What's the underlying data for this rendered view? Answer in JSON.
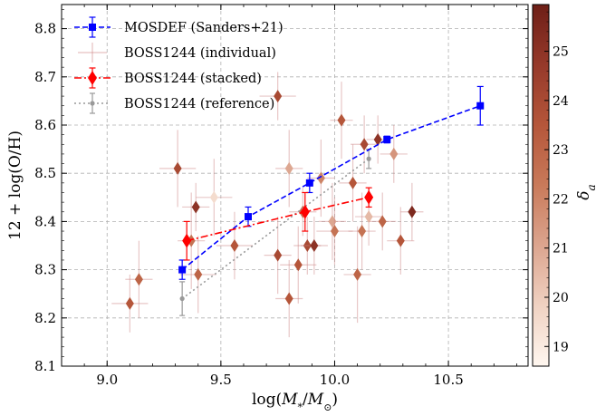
{
  "chart_data": {
    "type": "scatter",
    "xlabel": "log(M*/M⊙)",
    "ylabel": "12 + log(O/H)",
    "xlim": [
      8.8,
      10.85
    ],
    "ylim": [
      8.1,
      8.85
    ],
    "xticks": [
      "9.0",
      "9.5",
      "10.0",
      "10.5"
    ],
    "xtick_values": [
      9.0,
      9.5,
      10.0,
      10.5
    ],
    "yticks": [
      "8.1",
      "8.2",
      "8.3",
      "8.4",
      "8.5",
      "8.6",
      "8.7",
      "8.8"
    ],
    "ytick_values": [
      8.1,
      8.2,
      8.3,
      8.4,
      8.5,
      8.6,
      8.7,
      8.8
    ],
    "grid": true,
    "legend_placement": "top-left",
    "colorbar": {
      "label": "δa",
      "range": [
        18.6,
        25.95
      ],
      "ticks": [
        "19",
        "20",
        "21",
        "22",
        "23",
        "24",
        "25"
      ],
      "tick_values": [
        19,
        20,
        21,
        22,
        23,
        24,
        25
      ],
      "colormap_stops": [
        "#fff7f0",
        "#f0d2c2",
        "#dca58f",
        "#c97a5a",
        "#b5563a",
        "#96392a",
        "#6e1f17"
      ]
    },
    "series": [
      {
        "name": "MOSDEF (Sanders+21)",
        "style": "blue-dashed-square",
        "color": "#0000ff",
        "points": [
          {
            "x": 9.33,
            "y": 8.3,
            "yerr": 0.02
          },
          {
            "x": 9.62,
            "y": 8.41,
            "yerr": 0.02
          },
          {
            "x": 9.89,
            "y": 8.48,
            "yerr": 0.02
          },
          {
            "x": 10.23,
            "y": 8.57,
            "yerr": 0.007
          },
          {
            "x": 10.64,
            "y": 8.64,
            "yerr": 0.04
          }
        ]
      },
      {
        "name": "BOSS1244 (individual)",
        "style": "colored-diamonds",
        "points": [
          {
            "x": 9.1,
            "y": 8.23,
            "xerr": 0.08,
            "yerr": 0.06,
            "c": 23.5
          },
          {
            "x": 9.14,
            "y": 8.28,
            "xerr": 0.06,
            "yerr": 0.08,
            "c": 23.0
          },
          {
            "x": 9.31,
            "y": 8.51,
            "xerr": 0.08,
            "yerr": 0.08,
            "c": 24.0
          },
          {
            "x": 9.37,
            "y": 8.36,
            "xerr": 0.06,
            "yerr": 0.1,
            "c": 22.5
          },
          {
            "x": 9.39,
            "y": 8.43,
            "xerr": 0.06,
            "yerr": 0.05,
            "c": 25.0
          },
          {
            "x": 9.4,
            "y": 8.29,
            "xerr": 0.08,
            "yerr": 0.08,
            "c": 23.0
          },
          {
            "x": 9.47,
            "y": 8.45,
            "xerr": 0.08,
            "yerr": 0.08,
            "c": 19.5
          },
          {
            "x": 9.56,
            "y": 8.35,
            "xerr": 0.08,
            "yerr": 0.07,
            "c": 23.5
          },
          {
            "x": 9.75,
            "y": 8.66,
            "xerr": 0.08,
            "yerr": 0.05,
            "c": 24.0
          },
          {
            "x": 9.75,
            "y": 8.33,
            "xerr": 0.06,
            "yerr": 0.08,
            "c": 24.0
          },
          {
            "x": 9.8,
            "y": 8.24,
            "xerr": 0.06,
            "yerr": 0.08,
            "c": 23.5
          },
          {
            "x": 9.8,
            "y": 8.51,
            "xerr": 0.06,
            "yerr": 0.08,
            "c": 21.0
          },
          {
            "x": 9.84,
            "y": 8.31,
            "xerr": 0.08,
            "yerr": 0.08,
            "c": 23.5
          },
          {
            "x": 9.86,
            "y": 8.42,
            "xerr": 0.06,
            "yerr": 0.05,
            "c": 22.5
          },
          {
            "x": 9.88,
            "y": 8.35,
            "xerr": 0.06,
            "yerr": 0.06,
            "c": 24.0
          },
          {
            "x": 9.91,
            "y": 8.35,
            "xerr": 0.06,
            "yerr": 0.06,
            "c": 25.0
          },
          {
            "x": 9.94,
            "y": 8.49,
            "xerr": 0.06,
            "yerr": 0.08,
            "c": 22.0
          },
          {
            "x": 9.99,
            "y": 8.4,
            "xerr": 0.06,
            "yerr": 0.08,
            "c": 21.0
          },
          {
            "x": 10.0,
            "y": 8.38,
            "xerr": 0.08,
            "yerr": 0.07,
            "c": 22.5
          },
          {
            "x": 10.03,
            "y": 8.61,
            "xerr": 0.05,
            "yerr": 0.08,
            "c": 23.5
          },
          {
            "x": 10.08,
            "y": 8.48,
            "xerr": 0.06,
            "yerr": 0.08,
            "c": 23.5
          },
          {
            "x": 10.1,
            "y": 8.29,
            "xerr": 0.06,
            "yerr": 0.1,
            "c": 23.0
          },
          {
            "x": 10.12,
            "y": 8.38,
            "xerr": 0.06,
            "yerr": 0.08,
            "c": 22.5
          },
          {
            "x": 10.13,
            "y": 8.56,
            "xerr": 0.06,
            "yerr": 0.06,
            "c": 24.0
          },
          {
            "x": 10.15,
            "y": 8.41,
            "xerr": 0.06,
            "yerr": 0.06,
            "c": 20.5
          },
          {
            "x": 10.19,
            "y": 8.57,
            "xerr": 0.05,
            "yerr": 0.05,
            "c": 25.0
          },
          {
            "x": 10.21,
            "y": 8.4,
            "xerr": 0.06,
            "yerr": 0.06,
            "c": 23.0
          },
          {
            "x": 10.26,
            "y": 8.54,
            "xerr": 0.06,
            "yerr": 0.06,
            "c": 21.5
          },
          {
            "x": 10.29,
            "y": 8.36,
            "xerr": 0.06,
            "yerr": 0.07,
            "c": 23.5
          },
          {
            "x": 10.34,
            "y": 8.42,
            "xerr": 0.05,
            "yerr": 0.06,
            "c": 25.5
          }
        ]
      },
      {
        "name": "BOSS1244 (stacked)",
        "style": "red-dashdot-diamond",
        "color": "#ff0000",
        "points": [
          {
            "x": 9.35,
            "y": 8.36,
            "yerr": 0.04
          },
          {
            "x": 9.87,
            "y": 8.42,
            "yerr": 0.04
          },
          {
            "x": 10.15,
            "y": 8.45,
            "yerr": 0.02
          }
        ]
      },
      {
        "name": "BOSS1244 (reference)",
        "style": "gray-dotted-circle",
        "color": "#999999",
        "points": [
          {
            "x": 9.33,
            "y": 8.24,
            "yerr": 0.035
          },
          {
            "x": 10.15,
            "y": 8.53,
            "yerr": 0.02
          }
        ]
      }
    ]
  }
}
